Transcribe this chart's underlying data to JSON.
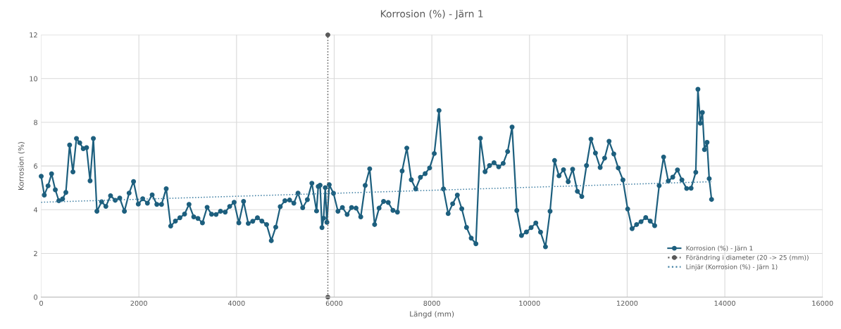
{
  "chart_data": {
    "type": "line",
    "title": "Korrosion (%) - Järn 1",
    "xlabel": "Längd (mm)",
    "ylabel": "Korrosion (%)",
    "xlim": [
      0,
      16000
    ],
    "xticks": [
      0,
      2000,
      4000,
      6000,
      8000,
      10000,
      12000,
      14000,
      16000
    ],
    "ylim": [
      0,
      12
    ],
    "yticks": [
      0,
      2,
      4,
      6,
      8,
      10,
      12
    ],
    "grid": true,
    "legend": "bottom right",
    "series": [
      {
        "name": "Korrosion (%) - Järn 1",
        "color": "#1d5f7e",
        "marker": "circle",
        "line_style": "solid",
        "x": [
          0,
          63,
          140,
          212,
          289,
          361,
          438,
          505,
          582,
          650,
          722,
          789,
          861,
          929,
          1001,
          1068,
          1141,
          1237,
          1324,
          1420,
          1516,
          1608,
          1704,
          1800,
          1891,
          1988,
          2079,
          2175,
          2272,
          2368,
          2464,
          2560,
          2652,
          2748,
          2840,
          2936,
          3027,
          3124,
          3210,
          3302,
          3398,
          3489,
          3581,
          3672,
          3768,
          3860,
          3951,
          4048,
          4144,
          4240,
          4332,
          4428,
          4519,
          4616,
          4712,
          4803,
          4895,
          4991,
          5087,
          5174,
          5259,
          5355,
          5451,
          5543,
          5639,
          5673,
          5711,
          5750,
          5783,
          5817,
          5851,
          5899,
          5986,
          6077,
          6168,
          6265,
          6356,
          6448,
          6544,
          6635,
          6727,
          6828,
          6919,
          7011,
          7107,
          7203,
          7295,
          7391,
          7487,
          7579,
          7670,
          7766,
          7863,
          7954,
          8050,
          8147,
          8238,
          8334,
          8426,
          8522,
          8613,
          8710,
          8806,
          8902,
          8994,
          9090,
          9181,
          9273,
          9369,
          9461,
          9552,
          9643,
          9740,
          9836,
          9937,
          10033,
          10129,
          10226,
          10327,
          10421,
          10513,
          10604,
          10696,
          10792,
          10883,
          10980,
          11071,
          11167,
          11259,
          11350,
          11447,
          11538,
          11629,
          11726,
          11817,
          11913,
          12010,
          12101,
          12193,
          12284,
          12380,
          12472,
          12563,
          12655,
          12746,
          12842,
          12934,
          13030,
          13121,
          13218,
          13309,
          13405,
          13449,
          13497,
          13540,
          13583,
          13636,
          13680,
          13728
        ],
        "values": [
          5.53,
          4.67,
          5.09,
          5.64,
          4.91,
          4.41,
          4.49,
          4.79,
          6.96,
          5.73,
          7.26,
          7.06,
          6.79,
          6.84,
          5.32,
          7.26,
          3.93,
          4.36,
          4.15,
          4.64,
          4.43,
          4.53,
          3.93,
          4.76,
          5.29,
          4.26,
          4.5,
          4.3,
          4.68,
          4.24,
          4.24,
          4.96,
          3.25,
          3.48,
          3.63,
          3.8,
          4.24,
          3.67,
          3.6,
          3.4,
          4.11,
          3.79,
          3.78,
          3.93,
          3.89,
          4.15,
          4.34,
          3.4,
          4.38,
          3.37,
          3.47,
          3.63,
          3.48,
          3.32,
          2.58,
          3.2,
          4.14,
          4.41,
          4.44,
          4.3,
          4.76,
          4.09,
          4.46,
          5.21,
          3.94,
          5.06,
          5.12,
          3.18,
          3.61,
          5.01,
          3.42,
          5.14,
          4.75,
          3.93,
          4.1,
          3.78,
          4.1,
          4.07,
          3.67,
          5.11,
          5.87,
          3.32,
          4.07,
          4.38,
          4.33,
          3.97,
          3.89,
          5.77,
          6.82,
          5.37,
          4.95,
          5.48,
          5.65,
          5.91,
          6.57,
          8.54,
          4.95,
          3.82,
          4.27,
          4.67,
          4.04,
          3.19,
          2.7,
          2.44,
          7.27,
          5.74,
          6.02,
          6.15,
          5.96,
          6.12,
          6.66,
          7.78,
          3.96,
          2.82,
          2.98,
          3.18,
          3.39,
          2.97,
          2.3,
          3.93,
          6.25,
          5.55,
          5.83,
          5.28,
          5.85,
          4.84,
          4.6,
          6.02,
          7.23,
          6.59,
          5.93,
          6.36,
          7.13,
          6.55,
          5.91,
          5.36,
          4.03,
          3.13,
          3.32,
          3.45,
          3.64,
          3.48,
          3.27,
          5.1,
          6.41,
          5.31,
          5.49,
          5.82,
          5.36,
          4.97,
          4.98,
          5.71,
          9.51,
          7.96,
          8.45,
          6.75,
          7.08,
          5.42,
          4.47
        ]
      },
      {
        "name": "Förändring i diameter (20 -> 25 (mm))",
        "color": "#595959",
        "marker": "circle",
        "line_style": "dotted",
        "x": [
          5870,
          5870
        ],
        "values": [
          0,
          12
        ]
      },
      {
        "name": "Linjär (Korrosion (%) - Järn 1)",
        "color": "#3f7fa3",
        "marker": "none",
        "line_style": "dotted",
        "x": [
          0,
          13728
        ],
        "values": [
          4.34,
          5.28
        ]
      }
    ]
  }
}
